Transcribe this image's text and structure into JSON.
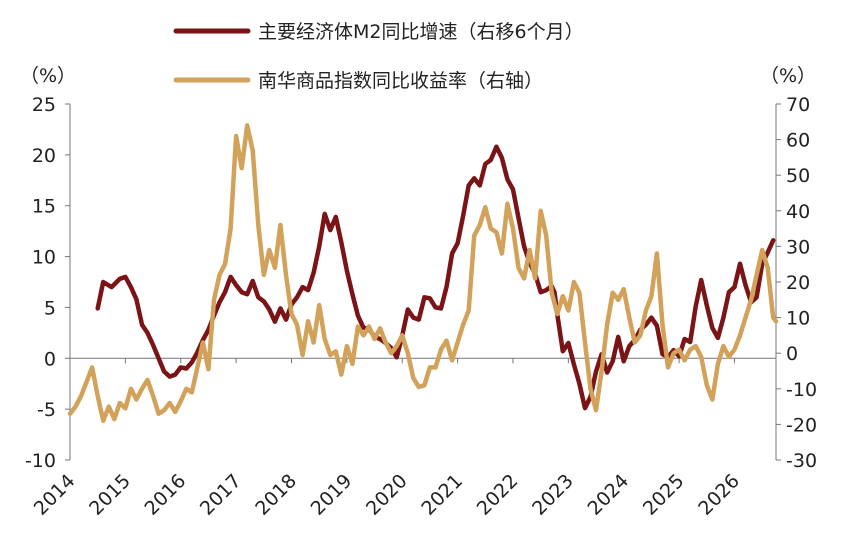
{
  "chart_data": {
    "type": "line",
    "title": "",
    "xlabel": "",
    "left_unit": "（%）",
    "right_unit": "（%）",
    "x_ticks": [
      "2014",
      "2015",
      "2016",
      "2017",
      "2018",
      "2019",
      "2020",
      "2021",
      "2022",
      "2023",
      "2024",
      "2025",
      "2026"
    ],
    "y_left": {
      "min": -10,
      "max": 25,
      "ticks": [
        25,
        20,
        15,
        10,
        5,
        0,
        -5,
        -10
      ]
    },
    "y_right": {
      "min": -30,
      "max": 70,
      "ticks": [
        70,
        60,
        50,
        40,
        30,
        20,
        10,
        0,
        -10,
        -20,
        -30
      ]
    },
    "grid": false,
    "legend_position": "top-center",
    "series": [
      {
        "name": "主要经济体M2同比增速（右移6个月）",
        "axis": "left",
        "color": "#7a1416",
        "points": [
          [
            2014.5,
            4.9
          ],
          [
            2014.6,
            7.5
          ],
          [
            2014.75,
            7.0
          ],
          [
            2014.9,
            7.8
          ],
          [
            2015.0,
            8.0
          ],
          [
            2015.1,
            7.0
          ],
          [
            2015.2,
            5.8
          ],
          [
            2015.3,
            3.3
          ],
          [
            2015.4,
            2.5
          ],
          [
            2015.5,
            1.3
          ],
          [
            2015.6,
            0.0
          ],
          [
            2015.7,
            -1.3
          ],
          [
            2015.8,
            -1.8
          ],
          [
            2015.9,
            -1.6
          ],
          [
            2016.0,
            -0.9
          ],
          [
            2016.1,
            -1.0
          ],
          [
            2016.2,
            -0.4
          ],
          [
            2016.3,
            0.6
          ],
          [
            2016.4,
            1.8
          ],
          [
            2016.5,
            2.8
          ],
          [
            2016.6,
            4.2
          ],
          [
            2016.7,
            5.5
          ],
          [
            2016.8,
            6.5
          ],
          [
            2016.9,
            8.0
          ],
          [
            2017.0,
            7.2
          ],
          [
            2017.1,
            6.5
          ],
          [
            2017.2,
            6.3
          ],
          [
            2017.3,
            7.6
          ],
          [
            2017.4,
            6.0
          ],
          [
            2017.5,
            5.6
          ],
          [
            2017.6,
            4.8
          ],
          [
            2017.7,
            3.6
          ],
          [
            2017.8,
            4.9
          ],
          [
            2017.9,
            3.8
          ],
          [
            2018.0,
            5.3
          ],
          [
            2018.1,
            6.0
          ],
          [
            2018.2,
            7.0
          ],
          [
            2018.3,
            6.7
          ],
          [
            2018.4,
            8.4
          ],
          [
            2018.5,
            11.0
          ],
          [
            2018.6,
            14.2
          ],
          [
            2018.7,
            12.6
          ],
          [
            2018.8,
            13.9
          ],
          [
            2018.9,
            11.4
          ],
          [
            2019.0,
            8.6
          ],
          [
            2019.1,
            6.3
          ],
          [
            2019.2,
            4.2
          ],
          [
            2019.3,
            3.0
          ],
          [
            2019.4,
            2.9
          ],
          [
            2019.5,
            2.1
          ],
          [
            2019.6,
            1.9
          ],
          [
            2019.7,
            1.5
          ],
          [
            2019.8,
            1.0
          ],
          [
            2019.9,
            0.1
          ],
          [
            2020.0,
            2.2
          ],
          [
            2020.1,
            4.8
          ],
          [
            2020.2,
            4.0
          ],
          [
            2020.3,
            3.8
          ],
          [
            2020.4,
            6.0
          ],
          [
            2020.5,
            5.9
          ],
          [
            2020.6,
            5.0
          ],
          [
            2020.7,
            4.9
          ],
          [
            2020.8,
            7.0
          ],
          [
            2020.9,
            10.3
          ],
          [
            2021.0,
            11.3
          ],
          [
            2021.1,
            14.0
          ],
          [
            2021.2,
            17.0
          ],
          [
            2021.3,
            17.7
          ],
          [
            2021.4,
            17.0
          ],
          [
            2021.5,
            19.1
          ],
          [
            2021.6,
            19.5
          ],
          [
            2021.7,
            20.8
          ],
          [
            2021.8,
            19.7
          ],
          [
            2021.9,
            17.6
          ],
          [
            2022.0,
            16.6
          ],
          [
            2022.1,
            13.8
          ],
          [
            2022.2,
            11.0
          ],
          [
            2022.3,
            9.4
          ],
          [
            2022.4,
            8.3
          ],
          [
            2022.5,
            6.5
          ],
          [
            2022.6,
            6.7
          ],
          [
            2022.7,
            7.1
          ],
          [
            2022.75,
            6.5
          ],
          [
            2022.8,
            4.3
          ],
          [
            2022.9,
            0.7
          ],
          [
            2023.0,
            1.5
          ],
          [
            2023.1,
            -0.6
          ],
          [
            2023.2,
            -2.5
          ],
          [
            2023.3,
            -4.9
          ],
          [
            2023.4,
            -3.8
          ],
          [
            2023.5,
            -1.3
          ],
          [
            2023.6,
            0.4
          ],
          [
            2023.7,
            -1.4
          ],
          [
            2023.8,
            -0.3
          ],
          [
            2023.9,
            2.1
          ],
          [
            2024.0,
            -0.3
          ],
          [
            2024.1,
            1.2
          ],
          [
            2024.2,
            1.8
          ],
          [
            2024.3,
            2.8
          ],
          [
            2024.4,
            3.3
          ],
          [
            2024.5,
            4.0
          ],
          [
            2024.6,
            3.2
          ],
          [
            2024.7,
            0.4
          ],
          [
            2024.8,
            0.1
          ],
          [
            2024.9,
            0.8
          ],
          [
            2025.0,
            0.2
          ],
          [
            2025.1,
            1.9
          ],
          [
            2025.2,
            1.6
          ],
          [
            2025.3,
            5.1
          ],
          [
            2025.4,
            7.7
          ],
          [
            2025.5,
            5.2
          ],
          [
            2025.6,
            3.0
          ],
          [
            2025.7,
            2.0
          ],
          [
            2025.8,
            4.0
          ],
          [
            2025.9,
            6.5
          ],
          [
            2026.0,
            7.0
          ],
          [
            2026.1,
            9.3
          ],
          [
            2026.2,
            7.2
          ],
          [
            2026.3,
            5.5
          ],
          [
            2026.4,
            6.0
          ],
          [
            2026.5,
            9.3
          ],
          [
            2026.6,
            10.4
          ],
          [
            2026.7,
            11.6
          ]
        ]
      },
      {
        "name": "南华商品指数同比收益率（右轴）",
        "axis": "right",
        "color": "#d2a25a",
        "points": [
          [
            2014.0,
            -17.0
          ],
          [
            2014.1,
            -15.0
          ],
          [
            2014.2,
            -12.0
          ],
          [
            2014.3,
            -8.0
          ],
          [
            2014.4,
            -4.0
          ],
          [
            2014.5,
            -12.0
          ],
          [
            2014.6,
            -19.0
          ],
          [
            2014.7,
            -15.0
          ],
          [
            2014.8,
            -18.5
          ],
          [
            2014.9,
            -14.0
          ],
          [
            2015.0,
            -15.5
          ],
          [
            2015.1,
            -10.0
          ],
          [
            2015.2,
            -13.0
          ],
          [
            2015.3,
            -10.0
          ],
          [
            2015.4,
            -7.5
          ],
          [
            2015.5,
            -12.0
          ],
          [
            2015.6,
            -17.0
          ],
          [
            2015.7,
            -16.0
          ],
          [
            2015.8,
            -14.0
          ],
          [
            2015.9,
            -16.5
          ],
          [
            2016.0,
            -13.5
          ],
          [
            2016.1,
            -10.0
          ],
          [
            2016.2,
            -11.0
          ],
          [
            2016.3,
            -4.0
          ],
          [
            2016.4,
            3.0
          ],
          [
            2016.5,
            -4.5
          ],
          [
            2016.6,
            15.0
          ],
          [
            2016.7,
            22.0
          ],
          [
            2016.8,
            25.0
          ],
          [
            2016.9,
            35.0
          ],
          [
            2017.0,
            61.0
          ],
          [
            2017.1,
            52.0
          ],
          [
            2017.2,
            64.0
          ],
          [
            2017.3,
            57.0
          ],
          [
            2017.4,
            36.0
          ],
          [
            2017.5,
            22.0
          ],
          [
            2017.6,
            29.0
          ],
          [
            2017.7,
            24.0
          ],
          [
            2017.8,
            36.0
          ],
          [
            2017.9,
            22.0
          ],
          [
            2018.0,
            11.0
          ],
          [
            2018.1,
            8.0
          ],
          [
            2018.2,
            -0.5
          ],
          [
            2018.3,
            9.0
          ],
          [
            2018.4,
            3.0
          ],
          [
            2018.5,
            13.5
          ],
          [
            2018.6,
            4.0
          ],
          [
            2018.7,
            -0.5
          ],
          [
            2018.8,
            0.5
          ],
          [
            2018.9,
            -6.0
          ],
          [
            2019.0,
            2.0
          ],
          [
            2019.1,
            -3.0
          ],
          [
            2019.2,
            7.5
          ],
          [
            2019.3,
            5.0
          ],
          [
            2019.4,
            7.5
          ],
          [
            2019.5,
            4.0
          ],
          [
            2019.6,
            7.0
          ],
          [
            2019.7,
            3.0
          ],
          [
            2019.8,
            0.0
          ],
          [
            2019.9,
            2.0
          ],
          [
            2020.0,
            5.0
          ],
          [
            2020.1,
            0.0
          ],
          [
            2020.2,
            -7.0
          ],
          [
            2020.3,
            -9.5
          ],
          [
            2020.4,
            -9.0
          ],
          [
            2020.5,
            -4.0
          ],
          [
            2020.6,
            -4.0
          ],
          [
            2020.7,
            1.0
          ],
          [
            2020.8,
            3.5
          ],
          [
            2020.9,
            -2.0
          ],
          [
            2021.0,
            3.0
          ],
          [
            2021.1,
            8.0
          ],
          [
            2021.2,
            12.0
          ],
          [
            2021.3,
            33.0
          ],
          [
            2021.4,
            36.0
          ],
          [
            2021.5,
            41.0
          ],
          [
            2021.6,
            35.0
          ],
          [
            2021.7,
            34.0
          ],
          [
            2021.8,
            28.0
          ],
          [
            2021.9,
            42.0
          ],
          [
            2022.0,
            35.0
          ],
          [
            2022.1,
            24.0
          ],
          [
            2022.2,
            21.0
          ],
          [
            2022.3,
            29.0
          ],
          [
            2022.4,
            21.0
          ],
          [
            2022.5,
            40.0
          ],
          [
            2022.6,
            33.0
          ],
          [
            2022.7,
            17.0
          ],
          [
            2022.8,
            11.0
          ],
          [
            2022.9,
            16.0
          ],
          [
            2023.0,
            12.0
          ],
          [
            2023.1,
            20.0
          ],
          [
            2023.2,
            17.0
          ],
          [
            2023.3,
            3.0
          ],
          [
            2023.4,
            -10.0
          ],
          [
            2023.5,
            -16.0
          ],
          [
            2023.6,
            -5.0
          ],
          [
            2023.7,
            8.0
          ],
          [
            2023.8,
            17.0
          ],
          [
            2023.9,
            15.0
          ],
          [
            2024.0,
            18.0
          ],
          [
            2024.1,
            10.0
          ],
          [
            2024.2,
            3.0
          ],
          [
            2024.3,
            5.0
          ],
          [
            2024.4,
            12.0
          ],
          [
            2024.5,
            16.0
          ],
          [
            2024.6,
            28.0
          ],
          [
            2024.7,
            8.0
          ],
          [
            2024.8,
            -4.0
          ],
          [
            2024.9,
            0.0
          ],
          [
            2025.0,
            1.0
          ],
          [
            2025.1,
            -2.0
          ],
          [
            2025.2,
            1.0
          ],
          [
            2025.3,
            2.0
          ],
          [
            2025.4,
            -1.0
          ],
          [
            2025.5,
            -9.0
          ],
          [
            2025.6,
            -13.0
          ],
          [
            2025.7,
            -3.0
          ],
          [
            2025.8,
            2.0
          ],
          [
            2025.9,
            -1.0
          ],
          [
            2026.0,
            1.0
          ],
          [
            2026.1,
            5.0
          ],
          [
            2026.2,
            10.0
          ],
          [
            2026.3,
            15.0
          ],
          [
            2026.4,
            22.0
          ],
          [
            2026.5,
            29.0
          ],
          [
            2026.6,
            24.0
          ],
          [
            2026.7,
            10.0
          ],
          [
            2026.75,
            9.0
          ]
        ]
      }
    ]
  }
}
